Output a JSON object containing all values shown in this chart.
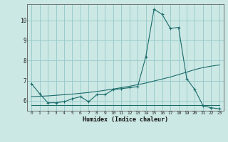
{
  "xlabel": "Humidex (Indice chaleur)",
  "bg_color": "#cce8e4",
  "line_color": "#1a6b6b",
  "grid_color": "#99cccc",
  "xlim": [
    -0.5,
    23.5
  ],
  "ylim": [
    5.5,
    10.8
  ],
  "xticks": [
    0,
    1,
    2,
    3,
    4,
    5,
    6,
    7,
    8,
    9,
    10,
    11,
    12,
    13,
    14,
    15,
    16,
    17,
    18,
    19,
    20,
    21,
    22,
    23
  ],
  "yticks": [
    6,
    7,
    8,
    9,
    10
  ],
  "line1_x": [
    0,
    1,
    2,
    3,
    4,
    5,
    6,
    7,
    8,
    9,
    10,
    11,
    12,
    13,
    14,
    15,
    16,
    17,
    18,
    19,
    20,
    21,
    22,
    23
  ],
  "line1_y": [
    6.85,
    6.35,
    5.9,
    5.9,
    5.95,
    6.1,
    6.2,
    5.95,
    6.3,
    6.3,
    6.55,
    6.6,
    6.65,
    6.7,
    8.2,
    10.55,
    10.3,
    9.6,
    9.65,
    7.1,
    6.55,
    5.75,
    5.65,
    5.6
  ],
  "line2_x": [
    0,
    1,
    2,
    3,
    4,
    5,
    6,
    7,
    8,
    9,
    10,
    11,
    12,
    13,
    14,
    15,
    16,
    17,
    18,
    19,
    20,
    21,
    22,
    23
  ],
  "line2_y": [
    6.2,
    6.22,
    6.24,
    6.27,
    6.3,
    6.33,
    6.37,
    6.41,
    6.46,
    6.52,
    6.58,
    6.65,
    6.72,
    6.8,
    6.88,
    6.98,
    7.08,
    7.18,
    7.3,
    7.42,
    7.55,
    7.65,
    7.72,
    7.78
  ],
  "line3_x": [
    0,
    1,
    2,
    3,
    4,
    5,
    6,
    7,
    8,
    9,
    10,
    11,
    12,
    13,
    14,
    15,
    16,
    17,
    18,
    19,
    20,
    21,
    22,
    23
  ],
  "line3_y": [
    5.78,
    5.78,
    5.78,
    5.78,
    5.78,
    5.78,
    5.78,
    5.78,
    5.78,
    5.78,
    5.78,
    5.78,
    5.78,
    5.78,
    5.78,
    5.78,
    5.78,
    5.78,
    5.78,
    5.78,
    5.78,
    5.78,
    5.78,
    5.78
  ]
}
